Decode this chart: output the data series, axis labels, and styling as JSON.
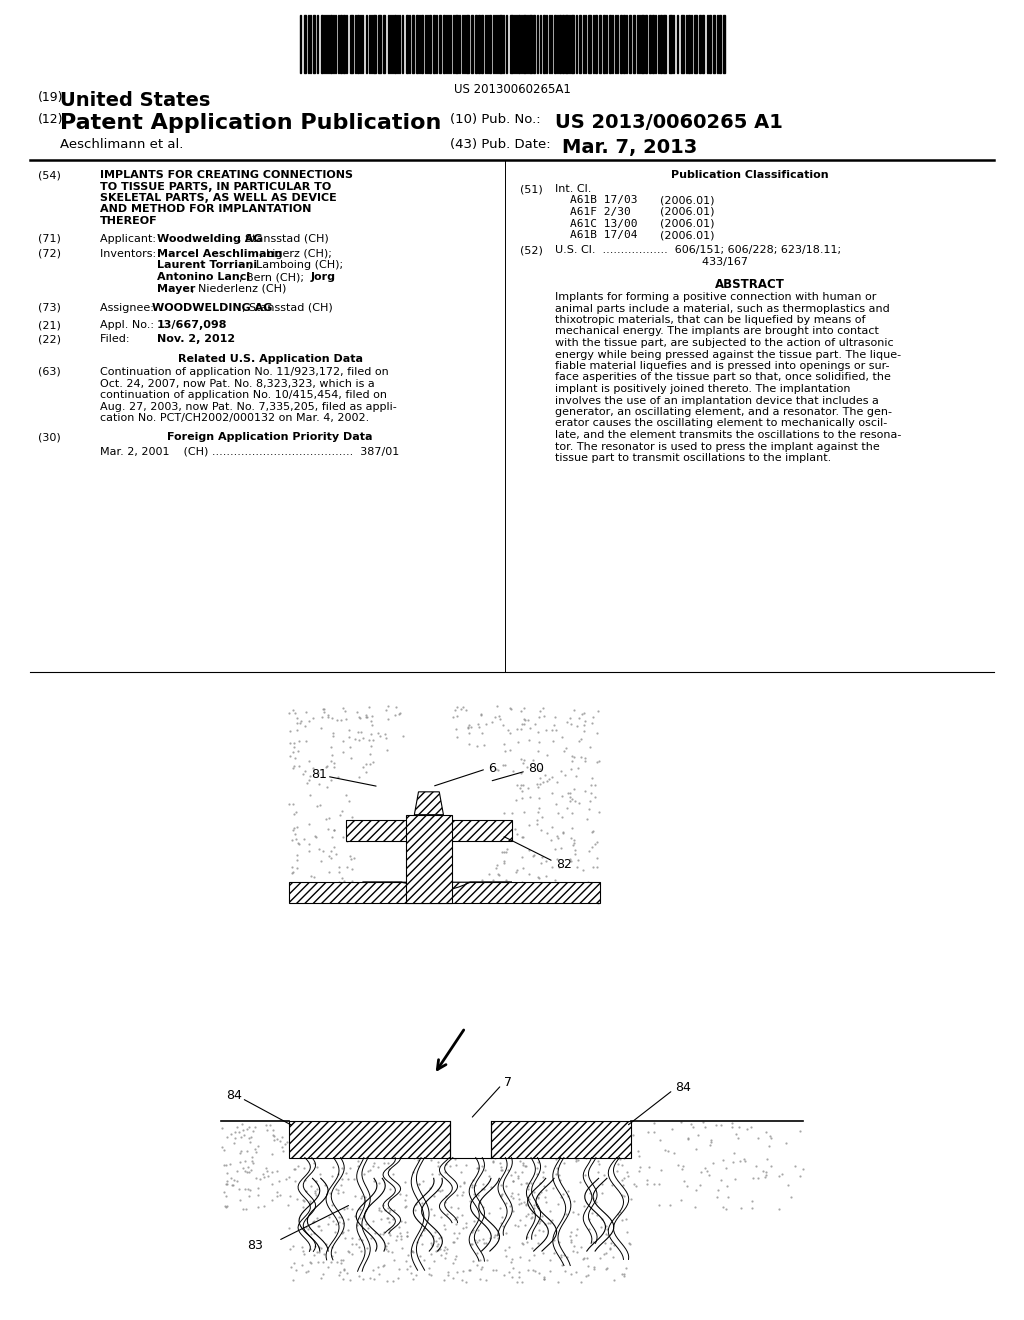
{
  "background_color": "#ffffff",
  "barcode_text": "US 20130060265A1",
  "title_19": "(19)",
  "title_19_bold": "United States",
  "title_12": "(12)",
  "title_12_bold": "Patent Application Publication",
  "pub_no_label": "(10) Pub. No.:",
  "pub_no": "US 2013/0060265 A1",
  "author": "Aeschlimann et al.",
  "pub_date_label": "(43) Pub. Date:",
  "pub_date": "Mar. 7, 2013",
  "field_54_num": "(54)",
  "field_54_lines": [
    "IMPLANTS FOR CREATING CONNECTIONS",
    "TO TISSUE PARTS, IN PARTICULAR TO",
    "SKELETAL PARTS, AS WELL AS DEVICE",
    "AND METHOD FOR IMPLANTATION",
    "THEREOF"
  ],
  "field_71_num": "(71)",
  "field_73_num": "(73)",
  "field_21_num": "(21)",
  "field_22_num": "(22)",
  "field_63_num": "(63)",
  "field_63_lines": [
    "Continuation of application No. 11/923,172, filed on",
    "Oct. 24, 2007, now Pat. No. 8,323,323, which is a",
    "continuation of application No. 10/415,454, filed on",
    "Aug. 27, 2003, now Pat. No. 7,335,205, filed as appli-",
    "cation No. PCT/CH2002/000132 on Mar. 4, 2002."
  ],
  "field_30_num": "(30)",
  "field_30_data": "Mar. 2, 2001    (CH) .......................................  387/01",
  "pub_class_title": "Publication Classification",
  "field_51_num": "(51)",
  "field_51_label": "Int. Cl.",
  "field_51_items": [
    [
      "A61B 17/03",
      "(2006.01)"
    ],
    [
      "A61F 2/30",
      "(2006.01)"
    ],
    [
      "A61C 13/00",
      "(2006.01)"
    ],
    [
      "A61B 17/04",
      "(2006.01)"
    ]
  ],
  "field_52_num": "(52)",
  "field_52_line1": "U.S. Cl.  ..................  606/151; 606/228; 623/18.11;",
  "field_52_line2": "                                          433/167",
  "field_57_title": "ABSTRACT",
  "field_57_lines": [
    "Implants for forming a positive connection with human or",
    "animal parts include a material, such as thermoplastics and",
    "thixotropic materials, that can be liquefied by means of",
    "mechanical energy. The implants are brought into contact",
    "with the tissue part, are subjected to the action of ultrasonic",
    "energy while being pressed against the tissue part. The lique-",
    "fiable material liquefies and is pressed into openings or sur-",
    "face asperities of the tissue part so that, once solidified, the",
    "implant is positively joined thereto. The implantation",
    "involves the use of an implantation device that includes a",
    "generator, an oscillating element, and a resonator. The gen-",
    "erator causes the oscillating element to mechanically oscil-",
    "late, and the element transmits the oscillations to the resona-",
    "tor. The resonator is used to press the implant against the",
    "tissue part to transmit oscillations to the implant."
  ]
}
